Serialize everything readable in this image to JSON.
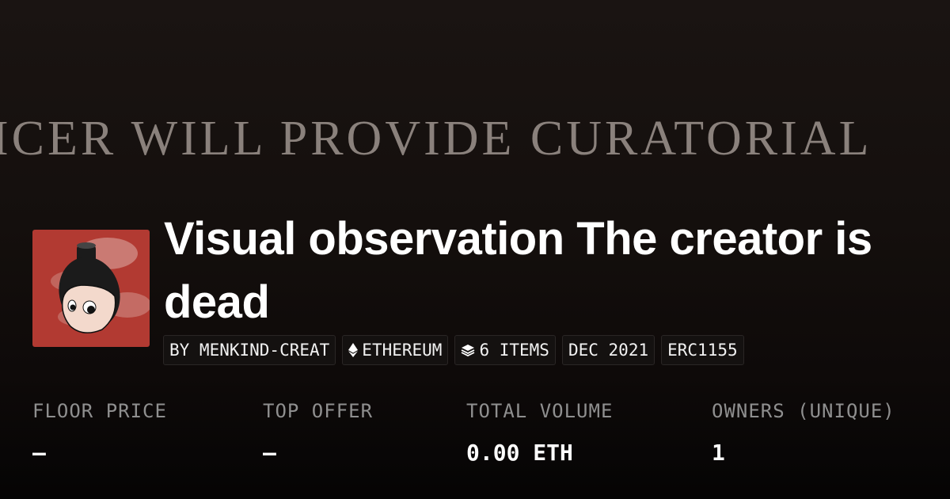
{
  "banner": {
    "text": "ICER WILL PROVIDE CURATORIAL"
  },
  "collection": {
    "title": "Visual observation The creator is dead",
    "badges": [
      {
        "label": "BY MENKIND-CREAT",
        "icon": null
      },
      {
        "label": "ETHEREUM",
        "icon": "ethereum-icon"
      },
      {
        "label": "6 ITEMS",
        "icon": "layers-icon"
      },
      {
        "label": "DEC 2021",
        "icon": null
      },
      {
        "label": "ERC1155",
        "icon": null
      }
    ]
  },
  "stats": [
    {
      "label": "FLOOR PRICE",
      "value": "–"
    },
    {
      "label": "TOP OFFER",
      "value": "–"
    },
    {
      "label": "TOTAL VOLUME",
      "value": "0.00 ETH"
    },
    {
      "label": "OWNERS (UNIQUE)",
      "value": "1"
    }
  ],
  "colors": {
    "avatar_bg": "#b23a32",
    "background": "#0e0a09"
  }
}
